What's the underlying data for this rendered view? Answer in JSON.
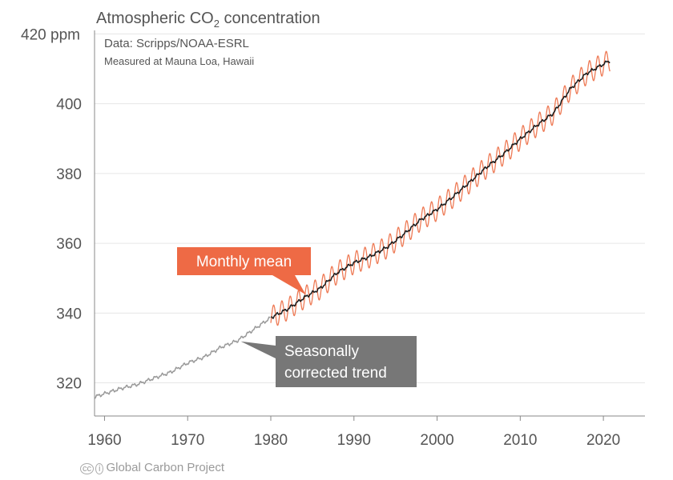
{
  "chart_data": {
    "type": "line",
    "title_prefix": "Atmospheric CO",
    "title_subscript": "2",
    "title_suffix": " concentration",
    "subtitle_lines": [
      "Data: Scripps/NOAA-ESRL",
      "Measured at Mauna Loa, Hawaii"
    ],
    "ylabel_unit": "ppm",
    "xlim": [
      1958.8,
      2025
    ],
    "ylim": [
      310.5,
      421
    ],
    "x_ticks": [
      1960,
      1970,
      1980,
      1990,
      2000,
      2010,
      2020
    ],
    "y_ticks": [
      320,
      340,
      360,
      380,
      400,
      420
    ],
    "grid": true,
    "series": [
      {
        "name": "Seasonally corrected trend",
        "color": "#1a1a1a",
        "early_color": "#999999",
        "early_until": 1980,
        "x": [
          1958.2,
          1960,
          1962,
          1964,
          1966,
          1968,
          1970,
          1972,
          1974,
          1976,
          1978,
          1980,
          1982,
          1984,
          1986,
          1988,
          1990,
          1992,
          1994,
          1996,
          1998,
          2000,
          2002,
          2004,
          2006,
          2008,
          2010,
          2012,
          2014,
          2016,
          2018,
          2020.8
        ],
        "y": [
          315.5,
          316.9,
          318.4,
          319.6,
          321.4,
          323.1,
          325.7,
          327.4,
          330.2,
          332.1,
          335.4,
          338.7,
          341.1,
          344.4,
          347.2,
          351.6,
          354.4,
          356.3,
          358.9,
          362.6,
          366.7,
          369.7,
          373.5,
          377.7,
          381.9,
          385.6,
          389.9,
          393.8,
          397.3,
          404.2,
          408.7,
          412.4
        ]
      },
      {
        "name": "Monthly mean",
        "color": "#ee7a55",
        "x_start": 1980,
        "seasonal_amplitude": 3.2
      }
    ],
    "annotations": [
      {
        "name": "monthly-mean",
        "text": "Monthly mean",
        "box_color": "#ee6a45",
        "x": 1984.2,
        "y": 345.3
      },
      {
        "name": "seasonal-trend",
        "lines": [
          "Seasonally",
          "corrected trend"
        ],
        "box_color": "#777777",
        "x": 1976.4,
        "y": 331.9
      }
    ]
  },
  "footer": {
    "credit": "Global Carbon Project",
    "icon": "creative-commons-icon"
  }
}
